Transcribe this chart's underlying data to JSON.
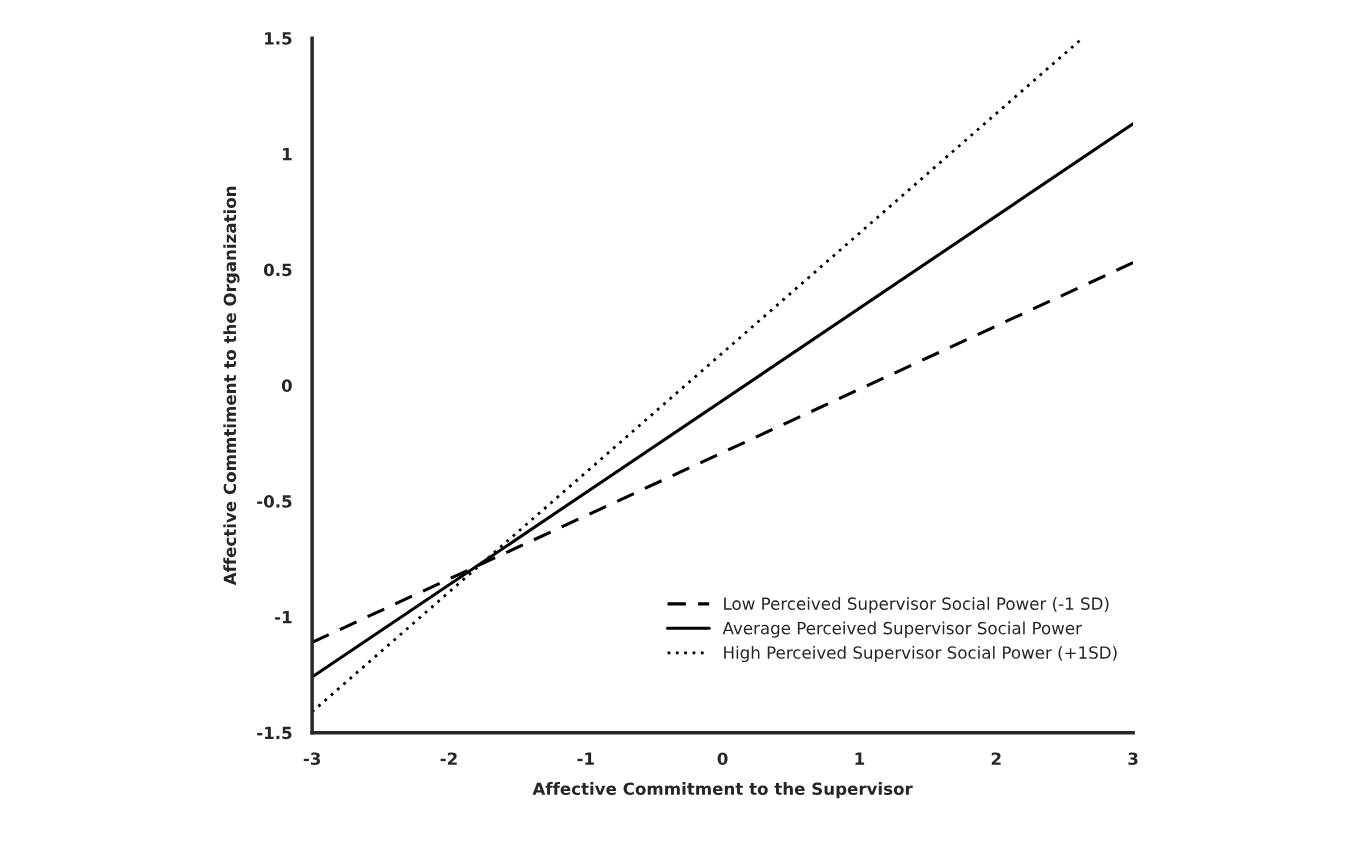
{
  "chart_data": {
    "type": "line",
    "xlabel": "Affective Commitment to the Supervisor",
    "ylabel": "Affective Commtiment to the Organization",
    "xlim": [
      -3,
      3
    ],
    "xticks": [
      -3,
      -2,
      -1,
      0,
      1,
      2,
      3
    ],
    "ylim": [
      -1.5,
      1.5
    ],
    "yticks": [
      -1.5,
      -1,
      -0.5,
      0,
      0.5,
      1,
      1.5
    ],
    "grid": false,
    "legend": "bottom right",
    "series": [
      {
        "name": "Low Perceived Supervisor Social Power (-1 SD)",
        "color": "#000000",
        "line_style": "dashed",
        "x": [
          -3,
          3
        ],
        "values": [
          -1.11,
          0.53
        ]
      },
      {
        "name": "Average Perceived Supervisor Social Power",
        "color": "#000000",
        "line_style": "solid",
        "x": [
          -3,
          3
        ],
        "values": [
          -1.26,
          1.13
        ]
      },
      {
        "name": "High Perceived Supervisor Social Power (+1SD)",
        "color": "#000000",
        "line_style": "dotted",
        "x": [
          -3,
          2.63
        ],
        "values": [
          -1.41,
          1.5
        ]
      }
    ]
  }
}
